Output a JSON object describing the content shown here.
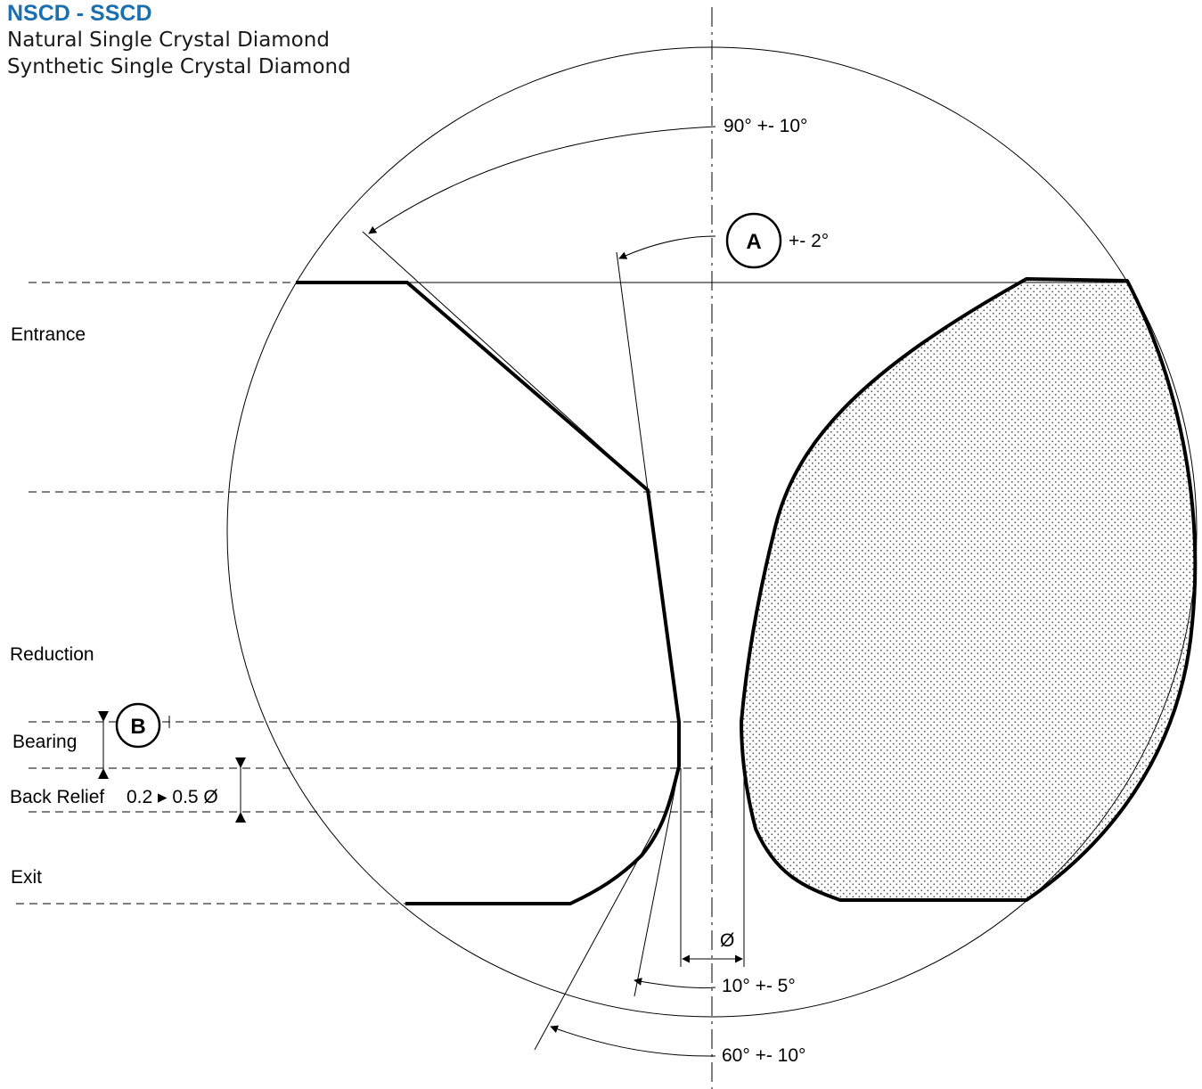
{
  "header": {
    "title": "NSCD - SSCD",
    "subtitle_1": "Natural Single Crystal Diamond",
    "subtitle_2": "Synthetic Single Crystal Diamond",
    "title_color": "#1B6FAE"
  },
  "zones": {
    "entrance": "Entrance",
    "reduction": "Reduction",
    "bearing": "Bearing",
    "back_relief": "Back Relief",
    "back_relief_range": "0.2 ▸ 0.5 Ø",
    "exit": "Exit"
  },
  "markers": {
    "a": "A",
    "b": "B"
  },
  "angles": {
    "entrance_angle": "90° +- 10°",
    "reduction_tolerance": "+- 2°",
    "back_relief_angle": "10° +- 5°",
    "exit_angle": "60° +- 10°"
  },
  "diameter_symbol": "Ø"
}
